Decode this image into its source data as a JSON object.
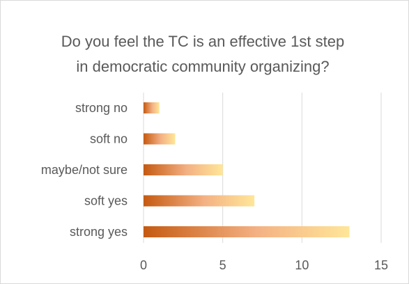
{
  "chart_data": {
    "type": "bar",
    "orientation": "horizontal",
    "title": "Do you feel the TC is an effective 1st step in democratic community organizing?",
    "title_lines": [
      "Do you feel the TC is an effective 1st step",
      "in democratic community organizing?"
    ],
    "categories": [
      "strong no",
      "soft no",
      "maybe/not sure",
      "soft yes",
      "strong yes"
    ],
    "values": [
      1,
      2,
      5,
      7,
      13
    ],
    "xlim": [
      0,
      15
    ],
    "x_ticks": [
      0,
      5,
      10,
      15
    ],
    "grid": true,
    "legend": "none",
    "bar_gradient": [
      "#c55a11",
      "#f4b183",
      "#ffe699"
    ]
  }
}
